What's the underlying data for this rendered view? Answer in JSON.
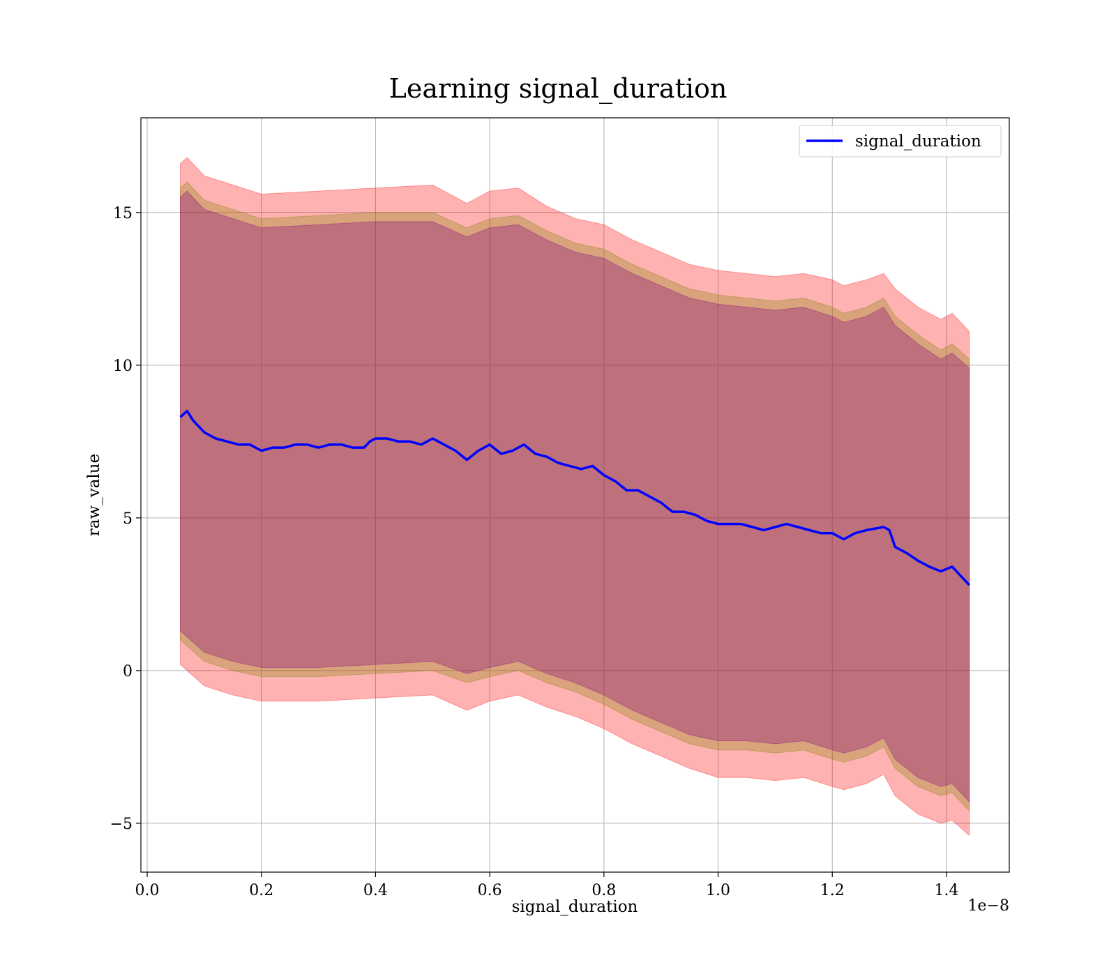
{
  "chart_data": {
    "type": "line",
    "title": "Learning signal_duration",
    "xlabel": "signal_duration",
    "ylabel": "raw_value",
    "x_offset_label": "1e−8",
    "xlim": [
      -0.011,
      1.51
    ],
    "ylim": [
      -6.6,
      18.1
    ],
    "x_ticks": [
      0.0,
      0.2,
      0.4,
      0.6,
      0.8,
      1.0,
      1.2,
      1.4
    ],
    "x_tick_labels": [
      "0.0",
      "0.2",
      "0.4",
      "0.6",
      "0.8",
      "1.0",
      "1.2",
      "1.4"
    ],
    "y_ticks": [
      -5,
      0,
      5,
      10,
      15
    ],
    "y_tick_labels": [
      "−5",
      "0",
      "5",
      "10",
      "15"
    ],
    "grid": true,
    "legend_position": "top-right",
    "colors": {
      "line": "#0000ff",
      "outer_band": "#ff0000",
      "middle_band": "#808000",
      "inner_band": "#800080",
      "grid": "#b0b0b0"
    },
    "series": [
      {
        "name": "signal_duration",
        "x": [
          0.058,
          0.07,
          0.08,
          0.1,
          0.12,
          0.14,
          0.16,
          0.18,
          0.2,
          0.22,
          0.24,
          0.26,
          0.28,
          0.3,
          0.32,
          0.34,
          0.36,
          0.38,
          0.39,
          0.4,
          0.42,
          0.44,
          0.46,
          0.48,
          0.5,
          0.52,
          0.54,
          0.56,
          0.58,
          0.6,
          0.62,
          0.64,
          0.66,
          0.68,
          0.7,
          0.72,
          0.74,
          0.76,
          0.78,
          0.8,
          0.82,
          0.84,
          0.86,
          0.88,
          0.9,
          0.92,
          0.94,
          0.96,
          0.98,
          1.0,
          1.02,
          1.04,
          1.06,
          1.08,
          1.1,
          1.12,
          1.14,
          1.16,
          1.18,
          1.2,
          1.22,
          1.24,
          1.26,
          1.29,
          1.3,
          1.31,
          1.33,
          1.35,
          1.37,
          1.39,
          1.41,
          1.44
        ],
        "y": [
          8.3,
          8.5,
          8.2,
          7.8,
          7.6,
          7.5,
          7.4,
          7.4,
          7.2,
          7.3,
          7.3,
          7.4,
          7.4,
          7.3,
          7.4,
          7.4,
          7.3,
          7.3,
          7.5,
          7.6,
          7.6,
          7.5,
          7.5,
          7.4,
          7.6,
          7.4,
          7.2,
          6.9,
          7.2,
          7.4,
          7.1,
          7.2,
          7.4,
          7.1,
          7.0,
          6.8,
          6.7,
          6.6,
          6.7,
          6.4,
          6.2,
          5.9,
          5.9,
          5.7,
          5.5,
          5.2,
          5.2,
          5.1,
          4.9,
          4.8,
          4.8,
          4.8,
          4.7,
          4.6,
          4.7,
          4.8,
          4.7,
          4.6,
          4.5,
          4.5,
          4.3,
          4.5,
          4.6,
          4.7,
          4.6,
          4.05,
          3.85,
          3.6,
          3.4,
          3.25,
          3.4,
          2.8
        ]
      }
    ],
    "bands": [
      {
        "color_key": "outer_band",
        "x": [
          0.058,
          0.07,
          0.1,
          0.15,
          0.2,
          0.3,
          0.4,
          0.5,
          0.56,
          0.6,
          0.65,
          0.7,
          0.75,
          0.8,
          0.85,
          0.9,
          0.95,
          1.0,
          1.05,
          1.1,
          1.15,
          1.2,
          1.22,
          1.26,
          1.29,
          1.31,
          1.35,
          1.39,
          1.41,
          1.44
        ],
        "upper": [
          16.6,
          16.8,
          16.2,
          15.9,
          15.6,
          15.7,
          15.8,
          15.9,
          15.3,
          15.7,
          15.8,
          15.2,
          14.8,
          14.6,
          14.1,
          13.7,
          13.3,
          13.1,
          13.0,
          12.9,
          13.0,
          12.8,
          12.6,
          12.8,
          13.0,
          12.5,
          11.9,
          11.5,
          11.7,
          11.1
        ],
        "lower": [
          0.2,
          0.0,
          -0.5,
          -0.8,
          -1.0,
          -1.0,
          -0.9,
          -0.8,
          -1.3,
          -1.0,
          -0.8,
          -1.2,
          -1.5,
          -1.9,
          -2.4,
          -2.8,
          -3.2,
          -3.5,
          -3.5,
          -3.6,
          -3.5,
          -3.8,
          -3.9,
          -3.7,
          -3.4,
          -4.1,
          -4.7,
          -5.0,
          -4.9,
          -5.4
        ]
      },
      {
        "color_key": "middle_band",
        "x": [
          0.058,
          0.07,
          0.1,
          0.15,
          0.2,
          0.3,
          0.4,
          0.5,
          0.56,
          0.6,
          0.65,
          0.7,
          0.75,
          0.8,
          0.85,
          0.9,
          0.95,
          1.0,
          1.05,
          1.1,
          1.15,
          1.2,
          1.22,
          1.26,
          1.29,
          1.31,
          1.35,
          1.39,
          1.41,
          1.44
        ],
        "upper": [
          15.8,
          16.0,
          15.4,
          15.1,
          14.8,
          14.9,
          15.0,
          15.0,
          14.5,
          14.8,
          14.9,
          14.4,
          14.0,
          13.8,
          13.3,
          12.9,
          12.5,
          12.3,
          12.2,
          12.1,
          12.2,
          11.9,
          11.7,
          11.9,
          12.2,
          11.6,
          11.0,
          10.5,
          10.7,
          10.2
        ],
        "lower": [
          1.0,
          0.8,
          0.3,
          0.0,
          -0.2,
          -0.2,
          -0.1,
          0.0,
          -0.4,
          -0.2,
          0.0,
          -0.4,
          -0.7,
          -1.1,
          -1.6,
          -2.0,
          -2.4,
          -2.6,
          -2.6,
          -2.7,
          -2.6,
          -2.9,
          -3.0,
          -2.8,
          -2.5,
          -3.2,
          -3.8,
          -4.1,
          -4.0,
          -4.6
        ]
      },
      {
        "color_key": "inner_band",
        "x": [
          0.058,
          0.07,
          0.1,
          0.15,
          0.2,
          0.3,
          0.4,
          0.5,
          0.56,
          0.6,
          0.65,
          0.7,
          0.75,
          0.8,
          0.85,
          0.9,
          0.95,
          1.0,
          1.05,
          1.1,
          1.15,
          1.2,
          1.22,
          1.26,
          1.29,
          1.31,
          1.35,
          1.39,
          1.41,
          1.44
        ],
        "upper": [
          15.5,
          15.7,
          15.1,
          14.8,
          14.5,
          14.6,
          14.7,
          14.7,
          14.2,
          14.5,
          14.6,
          14.1,
          13.7,
          13.5,
          13.0,
          12.6,
          12.2,
          12.0,
          11.9,
          11.8,
          11.9,
          11.6,
          11.4,
          11.6,
          11.9,
          11.3,
          10.7,
          10.2,
          10.4,
          9.9
        ],
        "lower": [
          1.3,
          1.1,
          0.6,
          0.3,
          0.1,
          0.1,
          0.2,
          0.3,
          -0.1,
          0.1,
          0.3,
          -0.1,
          -0.4,
          -0.8,
          -1.3,
          -1.7,
          -2.1,
          -2.3,
          -2.3,
          -2.4,
          -2.3,
          -2.6,
          -2.7,
          -2.5,
          -2.2,
          -2.9,
          -3.5,
          -3.8,
          -3.7,
          -4.3
        ]
      }
    ]
  }
}
